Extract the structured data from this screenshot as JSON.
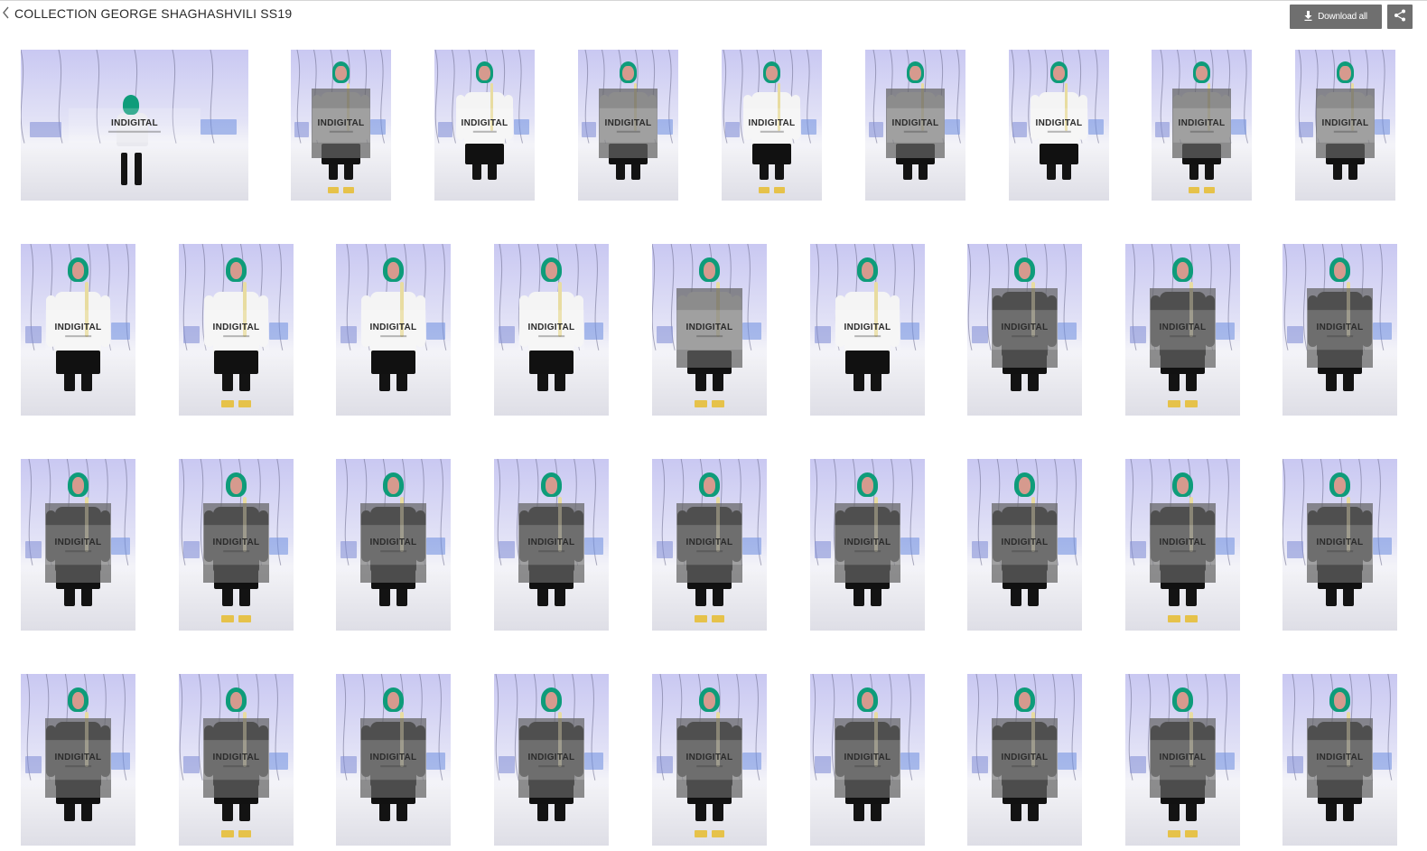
{
  "header": {
    "title": "COLLECTION GEORGE SHAGHASHVILI SS19",
    "back_icon": "chevron-left-icon",
    "download_label": "Download all",
    "download_icon": "download-icon",
    "share_icon": "share-icon"
  },
  "watermark": "INDIGITAL",
  "colors": {
    "button_bg": "#6f6f6f",
    "scarf": "#0e9c7a",
    "backdrop": "#c9c8f2"
  },
  "photos": [
    {
      "outfit": "scene",
      "gray": false
    },
    {
      "outfit": "white",
      "gray": true
    },
    {
      "outfit": "white",
      "gray": false
    },
    {
      "outfit": "white",
      "gray": true
    },
    {
      "outfit": "white",
      "gray": false
    },
    {
      "outfit": "white",
      "gray": true
    },
    {
      "outfit": "white",
      "gray": false
    },
    {
      "outfit": "white",
      "gray": true
    },
    {
      "outfit": "white",
      "gray": true
    },
    {
      "outfit": "white",
      "gray": false
    },
    {
      "outfit": "white",
      "gray": false
    },
    {
      "outfit": "white",
      "gray": false
    },
    {
      "outfit": "white",
      "gray": false
    },
    {
      "outfit": "white",
      "gray": true
    },
    {
      "outfit": "white",
      "gray": false
    },
    {
      "outfit": "black",
      "gray": true
    },
    {
      "outfit": "black",
      "gray": true
    },
    {
      "outfit": "black",
      "gray": true
    },
    {
      "outfit": "black",
      "gray": true
    },
    {
      "outfit": "black",
      "gray": true
    },
    {
      "outfit": "black",
      "gray": true
    },
    {
      "outfit": "black",
      "gray": true
    },
    {
      "outfit": "black",
      "gray": true
    },
    {
      "outfit": "black",
      "gray": true
    },
    {
      "outfit": "black",
      "gray": true
    },
    {
      "outfit": "black",
      "gray": true
    },
    {
      "outfit": "black",
      "gray": true
    },
    {
      "outfit": "black",
      "gray": true
    },
    {
      "outfit": "black",
      "gray": true
    },
    {
      "outfit": "black",
      "gray": true
    },
    {
      "outfit": "black",
      "gray": true
    },
    {
      "outfit": "black",
      "gray": true
    },
    {
      "outfit": "black",
      "gray": true
    },
    {
      "outfit": "black",
      "gray": true
    },
    {
      "outfit": "black",
      "gray": true
    },
    {
      "outfit": "black",
      "gray": true
    }
  ]
}
